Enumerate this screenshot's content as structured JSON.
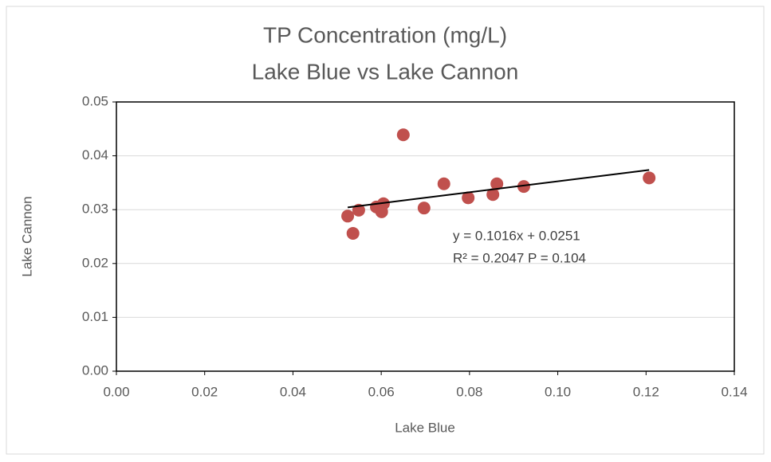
{
  "chart_data": {
    "type": "scatter",
    "title": [
      "TP Concentration (mg/L)",
      "Lake Blue vs Lake Cannon"
    ],
    "x_label": "Lake Blue",
    "y_label": "Lake Cannon",
    "series": [
      {
        "name": "Lake Cannon",
        "color": "#c0504d",
        "x": [
          0.0524,
          0.0536,
          0.0549,
          0.0589,
          0.0601,
          0.0605,
          0.065,
          0.0697,
          0.0742,
          0.0797,
          0.0853,
          0.0862,
          0.0923,
          0.1207
        ],
        "values": [
          0.0288,
          0.0256,
          0.0299,
          0.0305,
          0.0296,
          0.0311,
          0.0439,
          0.0303,
          0.0348,
          0.0322,
          0.0328,
          0.0348,
          0.0343,
          0.0359
        ]
      }
    ],
    "trendline": {
      "slope": 0.1016,
      "intercept": 0.0251,
      "color": "#000000",
      "label": "y = 0.1016x + 0.0251"
    },
    "annotation": "R² = 0.2047 P = 0.104",
    "xlim": [
      0,
      0.14
    ],
    "xticks": [
      {
        "value": 0,
        "label": "0.00"
      },
      {
        "value": 0.02,
        "label": "0.02"
      },
      {
        "value": 0.04,
        "label": "0.04"
      },
      {
        "value": 0.06,
        "label": "0.06"
      },
      {
        "value": 0.08,
        "label": "0.08"
      },
      {
        "value": 0.1,
        "label": "0.10"
      },
      {
        "value": 0.12,
        "label": "0.12"
      },
      {
        "value": 0.14,
        "label": "0.14"
      }
    ],
    "ylim": [
      0,
      0.05
    ],
    "yticks": [
      {
        "value": 0,
        "label": "0.00"
      },
      {
        "value": 0.01,
        "label": "0.01"
      },
      {
        "value": 0.02,
        "label": "0.02"
      },
      {
        "value": 0.03,
        "label": "0.03"
      },
      {
        "value": 0.04,
        "label": "0.04"
      },
      {
        "value": 0.05,
        "label": "0.05"
      }
    ],
    "grid": true
  }
}
